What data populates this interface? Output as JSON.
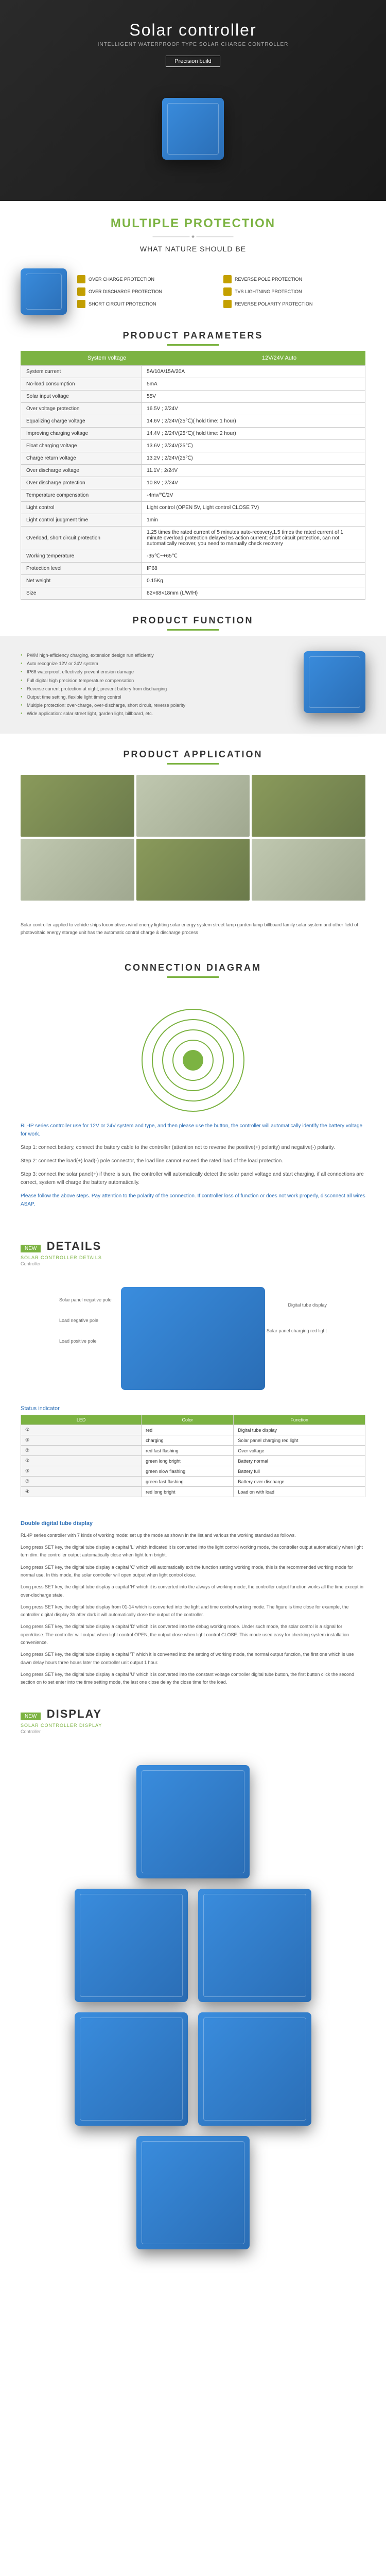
{
  "hero": {
    "title": "Solar controller",
    "subtitle": "INTELLIGENT WATERPROOF TYPE SOLAR CHARGE CONTROLLER",
    "badge": "Precision build"
  },
  "multi": {
    "title": "MULTIPLE PROTECTION",
    "line": "———————— ★ ————————",
    "question": "WHAT NATURE SHOULD BE",
    "items": [
      "OVER CHARGE PROTECTION",
      "REVERSE POLE PROTECTION",
      "OVER DISCHARGE PROTECTION",
      "TVS LIGHTNING PROTECTION",
      "SHORT CIRCUIT PROTECTION",
      "REVERSE POLARITY PROTECTION"
    ]
  },
  "params": {
    "title": "PRODUCT PARAMETERS",
    "hdr1": "System voltage",
    "hdr2": "12V/24V Auto",
    "rows": [
      [
        "System current",
        "5A/10A/15A/20A"
      ],
      [
        "No-load consumption",
        "5mA"
      ],
      [
        "Solar input voltage",
        "55V"
      ],
      [
        "Over voltage protection",
        "16.5V ; 2/24V"
      ],
      [
        "Equalizing charge voltage",
        "14.6V ; 2/24V(25℃)( hold time: 1 hour)"
      ],
      [
        "Improving charging voltage",
        "14.4V ; 2/24V(25℃)( hold time: 2 hour)"
      ],
      [
        "Float charging voltage",
        "13.6V ; 2/24V(25℃)"
      ],
      [
        "Charge return voltage",
        "13.2V ; 2/24V(25℃)"
      ],
      [
        "Over discharge voltage",
        "11.1V ; 2/24V"
      ],
      [
        "Over discharge protection",
        "10.8V ; 2/24V"
      ],
      [
        "Temperature compensation",
        "-4mv/℃/2V"
      ],
      [
        "Light control",
        "Light control (OPEN 5V, Light control CLOSE 7V)"
      ],
      [
        "Light control judgment time",
        "1min"
      ],
      [
        "Overload, short circuit protection",
        "1.25 times the rated current of 5 minutes auto-recovery,1.5 times the rated current of 1 minute overload protection delayed 5s action current; short circuit protection, can not automatically recover, you need to manually check recovery"
      ],
      [
        "Working temperature",
        "-35℃~+65℃"
      ],
      [
        "Protection level",
        "IP68"
      ],
      [
        "Net weight",
        "0.15Kg"
      ],
      [
        "Size",
        "82×68×18mm (L/W/H)"
      ]
    ]
  },
  "func": {
    "title": "PRODUCT FUNCTION",
    "items": [
      "PWM high-efficiency charging, extension design run efficiently",
      "Auto recognize 12V or 24V system",
      "IP68 waterproof, effectively prevent erosion damage",
      "Full digital high precision temperature compensation",
      "Reverse current protection at night, prevent battery from discharging",
      "Output time setting, flexible light timing control",
      "Multiple protection: over-charge, over-discharge, short circuit, reverse polarity",
      "Wide application: solar street light, garden light, billboard, etc."
    ]
  },
  "app": {
    "title": "PRODUCT APPLICATION",
    "note": "Solar controller applied to vehicle ships locomotives wind energy lighting solar energy system street lamp garden lamp billboard family solar system and other field of photovoltaic energy storage unit has the automatic control charge & discharge process"
  },
  "conn": {
    "title": "CONNECTION DIAGRAM",
    "intro": "RL-IP series controller use for 12V or 24V system and type, and then please use the button, the controller will automatically identify the battery voltage for work.",
    "steps": [
      "Step 1: connect battery, connect the battery cable to the controller (attention not to reverse the positive(+) polarity) and negative(-) polarity.",
      "Step 2: connect the load(+) load(-) pole connector, the load line cannot exceed the rated load of the load protection.",
      "Step 3: connect the solar panel(+) if there is sun, the controller will automatically detect the solar panel voltage and start charging, if all connections are correct, system will charge the battery automatically."
    ],
    "note": "Please follow the above steps. Pay attention to the polarity of the connection. If controller loss of function or does not work properly, disconnect all wires ASAP."
  },
  "details": {
    "tag": "NEW",
    "title": "DETAILS",
    "sub": "SOLAR CONTROLLER DETAILS",
    "model": "Controller",
    "callouts": {
      "l1": "Solar panel negative pole",
      "l2": "Load negative pole",
      "l3": "Load positive pole",
      "r1": "Digital tube display",
      "r2": "Solar panel charging red light"
    }
  },
  "ledTable": {
    "title": "Status indicator",
    "hdr": [
      "LED",
      "Color",
      "Function"
    ],
    "rows": [
      [
        "①",
        "red",
        "Digital tube display"
      ],
      [
        "②",
        "charging",
        "Solar panel charging red light"
      ],
      [
        "②",
        "red fast flashing",
        "Over voltage"
      ],
      [
        "③",
        "green long bright",
        "Battery normal"
      ],
      [
        "③",
        "green slow flashing",
        "Battery full"
      ],
      [
        "③",
        "green fast flashing",
        "Battery over discharge"
      ],
      [
        "④",
        "red long bright",
        "Load on with load"
      ]
    ]
  },
  "desc": {
    "t1": "Double digital tube display",
    "p1": "RL-IP series controller with 7 kinds of working mode: set up the mode as shown in the list,and various the working standard as follows.",
    "p2": "Long press SET key, the digital tube display a capital 'L' which indicated it is converted into the light control working mode, the controller output automatically when light turn dim: the controller output automatically close when light turn bright.",
    "p3": "Long press SET key, the digital tube display a capital 'C' which will automatically exit the function setting working mode, this is the recommended working mode for normal use. In this mode, the solar controller will open output when light control close.",
    "p4": "Long press SET key, the digital tube display a capital 'H' which it is converted into the always of working mode, the controller output function works all the time except in over-discharge state.",
    "p5": "Long press SET key, the digital tube display from 01-14 which is converted into the light and time control working mode. The figure is time close for example, the controller digital display 3h after dark it will automatically close the output of the controller.",
    "p6": "Long press SET key, the digital tube display a capital 'D' which it is converted into the debug working mode. Under such mode, the solar control is a signal for open/close. The controller will output when light control OPEN, the output close when light control CLOSE. This mode used easy for checking system installation convenience.",
    "p7": "Long press SET key, the digital tube display a capital 'T' which it is converted into the setting of working mode, the normal output function, the first one which is use dawn delay hours three hours later the controller unit output 1 hour.",
    "p8": "Long press SET key, the digital tube display a capital 'U' which it is converted into the constant voltage controller digital tube button, the first button click the second section on to set enter into the time setting mode, the last one close delay the close time for the load."
  },
  "display": {
    "tag": "NEW",
    "title": "DISPLAY",
    "sub": "SOLAR CONTROLLER DISPLAY",
    "model": "Controller"
  },
  "colors": {
    "green": "#7cb342",
    "blue": "#2a6db5",
    "deviceBlue": "#3a8dde",
    "gold": "#c4a000"
  }
}
